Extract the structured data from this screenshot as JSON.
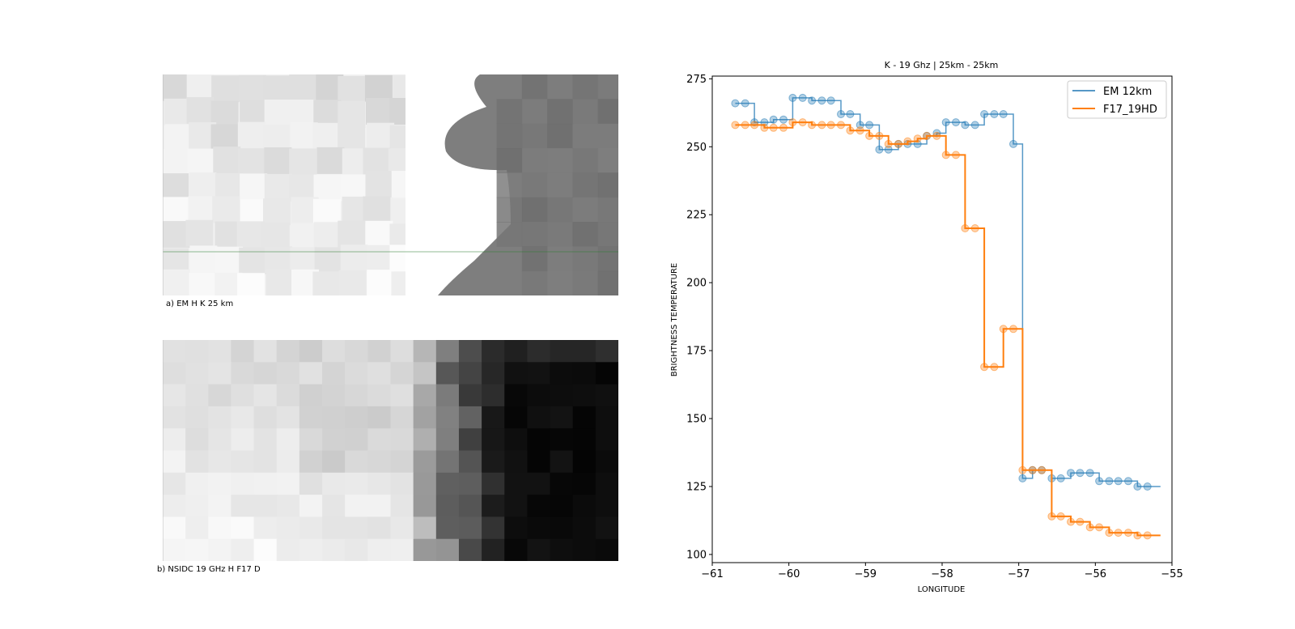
{
  "panels": {
    "a": {
      "caption": "a) EM H K 25 km"
    },
    "b": {
      "caption": "b) NSIDC 19 GHz H F17 D"
    }
  },
  "colors": {
    "series_em": "#1f77b4",
    "series_f17": "#ff7f0e",
    "transect_line": "#2e7d32"
  },
  "chart_data": {
    "type": "line",
    "title": "K - 19 Ghz | 25km - 25km",
    "xlabel": "LONGITUDE",
    "ylabel": "BRIGHTNESS TEMPERATURE",
    "xlim": [
      -61,
      -55
    ],
    "ylim": [
      97,
      276
    ],
    "xticks": [
      -61,
      -60,
      -59,
      -58,
      -57,
      -56,
      -55
    ],
    "yticks": [
      100,
      125,
      150,
      175,
      200,
      225,
      250,
      275
    ],
    "xtick_labels": [
      "−61",
      "−60",
      "−59",
      "−58",
      "−57",
      "−56",
      "−55"
    ],
    "ytick_labels": [
      "100",
      "125",
      "150",
      "175",
      "200",
      "225",
      "250",
      "275"
    ],
    "legend_position": "top-right",
    "grid": false,
    "series": [
      {
        "name": "EM 12km",
        "style": "step",
        "x": [
          -60.7,
          -60.57,
          -60.45,
          -60.32,
          -60.2,
          -60.07,
          -59.95,
          -59.82,
          -59.7,
          -59.57,
          -59.45,
          -59.32,
          -59.2,
          -59.07,
          -58.95,
          -58.82,
          -58.7,
          -58.57,
          -58.45,
          -58.32,
          -58.2,
          -58.07,
          -57.95,
          -57.82,
          -57.7,
          -57.57,
          -57.45,
          -57.32,
          -57.2,
          -57.07,
          -56.95,
          -56.82,
          -56.7,
          -56.57,
          -56.45,
          -56.32,
          -56.2,
          -56.07,
          -55.95,
          -55.82,
          -55.7,
          -55.57,
          -55.45,
          -55.32,
          -55.15
        ],
        "y": [
          266,
          266,
          259,
          259,
          260,
          260,
          268,
          268,
          267,
          267,
          267,
          262,
          262,
          258,
          258,
          249,
          249,
          251,
          251,
          251,
          254,
          255,
          259,
          259,
          258,
          258,
          262,
          262,
          262,
          251,
          128,
          131,
          131,
          128,
          128,
          130,
          130,
          130,
          127,
          127,
          127,
          127,
          125,
          125,
          125
        ]
      },
      {
        "name": "F17_19HD",
        "style": "step",
        "x": [
          -60.7,
          -60.57,
          -60.45,
          -60.32,
          -60.2,
          -60.07,
          -59.95,
          -59.82,
          -59.7,
          -59.57,
          -59.45,
          -59.32,
          -59.2,
          -59.07,
          -58.95,
          -58.82,
          -58.7,
          -58.57,
          -58.45,
          -58.32,
          -58.2,
          -58.07,
          -57.95,
          -57.82,
          -57.7,
          -57.57,
          -57.45,
          -57.32,
          -57.2,
          -57.07,
          -56.95,
          -56.82,
          -56.7,
          -56.57,
          -56.45,
          -56.32,
          -56.2,
          -56.07,
          -55.95,
          -55.82,
          -55.7,
          -55.57,
          -55.45,
          -55.32,
          -55.15
        ],
        "y": [
          258,
          258,
          258,
          257,
          257,
          257,
          259,
          259,
          258,
          258,
          258,
          258,
          256,
          256,
          254,
          254,
          251,
          251,
          252,
          253,
          254,
          254,
          247,
          247,
          220,
          220,
          169,
          169,
          183,
          183,
          131,
          131,
          131,
          114,
          114,
          112,
          112,
          110,
          110,
          108,
          108,
          108,
          107,
          107,
          107
        ]
      }
    ]
  }
}
